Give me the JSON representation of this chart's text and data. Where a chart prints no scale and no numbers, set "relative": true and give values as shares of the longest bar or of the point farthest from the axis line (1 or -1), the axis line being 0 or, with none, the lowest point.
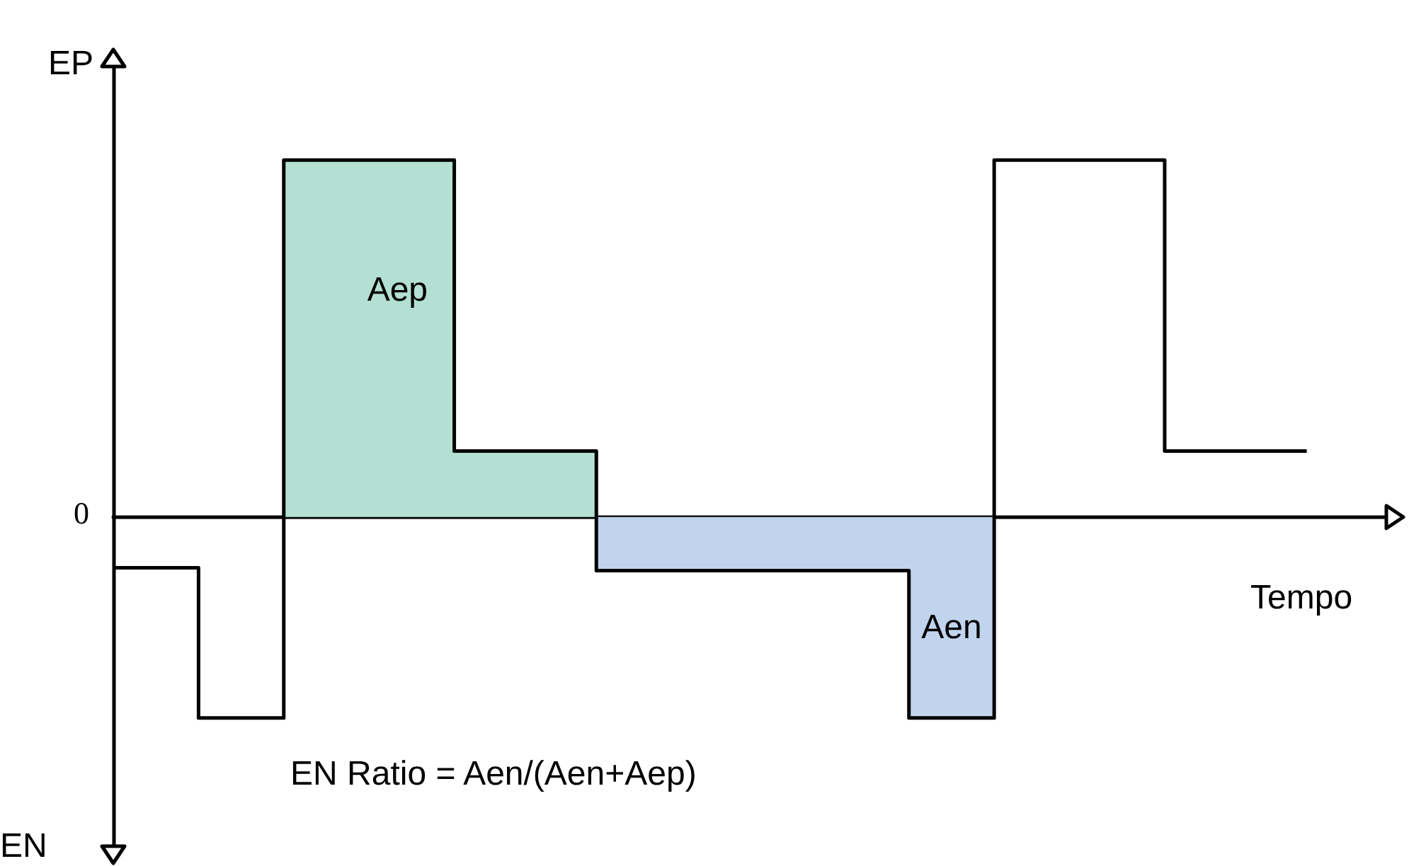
{
  "chart_data": {
    "type": "step",
    "relative": true,
    "xlabel": "Tempo",
    "ylabel": "EP",
    "legend": false,
    "grid": false,
    "marker": "none",
    "categories": [
      null,
      null,
      null,
      null,
      null,
      null,
      null,
      null,
      null,
      null,
      null,
      null,
      null,
      null,
      null,
      null,
      null,
      null,
      null,
      null,
      null,
      null,
      null,
      null,
      null,
      null,
      null,
      null,
      null,
      null,
      null,
      null,
      null,
      null,
      null,
      null,
      null,
      null,
      null,
      null,
      null,
      null,
      null,
      null,
      null,
      null
    ],
    "series": [
      {
        "name": "Aep",
        "type": "area",
        "color": "#b3e0d3",
        "values": [
          null,
          null,
          null,
          null,
          null,
          null,
          1,
          1,
          1,
          1,
          1,
          1,
          0.185,
          0.185,
          0.185,
          0.185,
          0.185,
          0.185,
          null,
          null,
          null,
          null,
          null,
          null,
          null,
          null,
          null,
          null,
          null,
          null,
          null,
          null,
          null,
          null,
          null,
          null,
          null,
          null,
          null,
          null,
          null,
          null,
          null,
          null,
          null,
          null
        ]
      },
      {
        "name": "Aen",
        "type": "area",
        "color": "#c0d4ee",
        "values": [
          null,
          null,
          null,
          null,
          null,
          null,
          null,
          null,
          null,
          null,
          null,
          null,
          null,
          null,
          null,
          null,
          null,
          -0.15,
          -0.15,
          -0.15,
          -0.15,
          -0.15,
          -0.15,
          -0.15,
          -0.15,
          -0.15,
          -0.15,
          -0.15,
          -0.563,
          -0.563,
          -0.563,
          -0.563,
          null,
          null,
          null,
          null,
          null,
          null,
          null,
          null,
          null,
          null,
          null,
          null,
          null,
          null
        ]
      },
      {
        "color": "#000000",
        "values": [
          -0.142,
          -0.142,
          -0.142,
          -0.563,
          -0.563,
          -0.563,
          1,
          1,
          1,
          1,
          1,
          1,
          0.185,
          0.185,
          0.185,
          0.185,
          0.185,
          -0.15,
          -0.15,
          -0.15,
          -0.15,
          -0.15,
          -0.15,
          -0.15,
          -0.15,
          -0.15,
          -0.15,
          -0.15,
          -0.563,
          -0.563,
          -0.563,
          1,
          1,
          1,
          1,
          1,
          1,
          0.185,
          0.185,
          0.185,
          0.185,
          0.185,
          0.185,
          null,
          null,
          null
        ]
      }
    ],
    "annotations": [
      "0",
      "EN",
      "EN Ratio = Aen/(Aen+Aep)"
    ]
  }
}
